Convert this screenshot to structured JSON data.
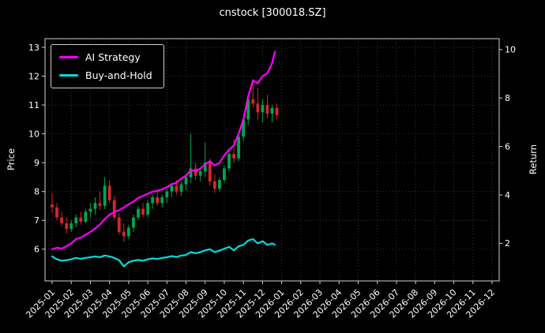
{
  "title": "cnstock [300018.SZ]",
  "chart_data": {
    "type": "candlestick",
    "title": "cnstock [300018.SZ]",
    "ylabel_left": "Price",
    "ylabel_right": "Return",
    "legend_position": "upper left",
    "grid": true,
    "background": "#000000",
    "x_tick_labels": [
      "2025-01",
      "2025-02",
      "2025-03",
      "2025-04",
      "2025-05",
      "2025-06",
      "2025-07",
      "2025-08",
      "2025-09",
      "2025-10",
      "2025-11",
      "2025-12",
      "2026-01",
      "2026-02",
      "2026-03",
      "2026-04",
      "2026-05",
      "2026-06",
      "2026-07",
      "2026-08",
      "2026-09",
      "2026-10",
      "2026-11",
      "2026-12"
    ],
    "price_axis": {
      "min": 4.9,
      "max": 13.3,
      "ticks": [
        6,
        7,
        8,
        9,
        10,
        11,
        12,
        13
      ]
    },
    "return_axis": {
      "min": 0.45,
      "max": 10.45,
      "ticks": [
        2,
        4,
        6,
        8,
        10
      ]
    },
    "colors": {
      "up": "#00a650",
      "down": "#d62728",
      "grid": "#3a3a3a",
      "spine": "#cfcfcf",
      "axis_text": "#ffffff"
    },
    "candles_format": "[month_offset_from_2025-01, open, high, low, close]",
    "candles": [
      [
        0,
        7.55,
        7.95,
        7.25,
        7.45
      ],
      [
        0.25,
        7.45,
        7.6,
        7.0,
        7.1
      ],
      [
        0.5,
        7.1,
        7.3,
        6.8,
        6.9
      ],
      [
        0.75,
        6.9,
        7.1,
        6.55,
        6.7
      ],
      [
        1,
        6.7,
        7.0,
        6.6,
        6.9
      ],
      [
        1.25,
        6.9,
        7.2,
        6.75,
        7.1
      ],
      [
        1.5,
        7.1,
        7.3,
        6.85,
        6.95
      ],
      [
        1.75,
        6.95,
        7.4,
        6.9,
        7.3
      ],
      [
        2,
        7.3,
        7.6,
        7.1,
        7.4
      ],
      [
        2.25,
        7.4,
        7.8,
        7.2,
        7.6
      ],
      [
        2.5,
        7.6,
        8.0,
        7.35,
        7.5
      ],
      [
        2.75,
        7.5,
        8.5,
        7.4,
        8.2
      ],
      [
        3,
        8.2,
        8.4,
        7.6,
        7.7
      ],
      [
        3.25,
        7.7,
        7.85,
        7.0,
        7.1
      ],
      [
        3.5,
        7.1,
        7.25,
        6.5,
        6.6
      ],
      [
        3.75,
        6.6,
        6.9,
        6.25,
        6.45
      ],
      [
        4,
        6.45,
        6.85,
        6.35,
        6.75
      ],
      [
        4.25,
        6.75,
        7.2,
        6.6,
        7.1
      ],
      [
        4.5,
        7.1,
        7.5,
        7.0,
        7.4
      ],
      [
        4.75,
        7.4,
        7.6,
        7.1,
        7.2
      ],
      [
        5,
        7.2,
        7.7,
        7.1,
        7.6
      ],
      [
        5.25,
        7.6,
        7.9,
        7.4,
        7.8
      ],
      [
        5.5,
        7.8,
        8.0,
        7.5,
        7.6
      ],
      [
        5.75,
        7.6,
        7.9,
        7.45,
        7.8
      ],
      [
        6,
        7.8,
        8.1,
        7.6,
        8.0
      ],
      [
        6.25,
        8.0,
        8.3,
        7.8,
        8.2
      ],
      [
        6.5,
        8.2,
        8.4,
        7.9,
        8.0
      ],
      [
        6.75,
        8.0,
        8.35,
        7.85,
        8.25
      ],
      [
        7,
        8.25,
        8.6,
        8.05,
        8.5
      ],
      [
        7.25,
        8.5,
        10.0,
        8.3,
        8.8
      ],
      [
        7.5,
        8.8,
        9.0,
        8.4,
        8.55
      ],
      [
        7.75,
        8.55,
        8.85,
        8.35,
        8.7
      ],
      [
        8,
        8.7,
        9.7,
        8.5,
        9.0
      ],
      [
        8.25,
        9.0,
        9.15,
        8.2,
        8.35
      ],
      [
        8.5,
        8.35,
        8.6,
        7.95,
        8.1
      ],
      [
        8.75,
        8.1,
        8.5,
        8.0,
        8.4
      ],
      [
        9,
        8.4,
        8.9,
        8.3,
        8.8
      ],
      [
        9.25,
        8.8,
        9.4,
        8.7,
        9.3
      ],
      [
        9.5,
        9.3,
        9.8,
        9.0,
        9.15
      ],
      [
        9.75,
        9.15,
        10.0,
        9.05,
        9.9
      ],
      [
        10,
        9.9,
        10.6,
        9.75,
        10.5
      ],
      [
        10.25,
        10.5,
        11.3,
        10.3,
        11.2
      ],
      [
        10.5,
        11.2,
        11.9,
        10.9,
        11.05
      ],
      [
        10.75,
        11.05,
        11.6,
        10.5,
        10.75
      ],
      [
        11,
        10.75,
        11.2,
        10.4,
        11.0
      ],
      [
        11.25,
        11.0,
        11.35,
        10.55,
        10.7
      ],
      [
        11.5,
        10.7,
        11.0,
        10.4,
        10.9
      ],
      [
        11.75,
        10.9,
        11.05,
        10.5,
        10.65
      ]
    ],
    "series": [
      {
        "name": "AI Strategy",
        "color": "#ff00ff",
        "points": [
          [
            0,
            6.0
          ],
          [
            0.25,
            6.05
          ],
          [
            0.5,
            6.02
          ],
          [
            0.75,
            6.1
          ],
          [
            1,
            6.2
          ],
          [
            1.25,
            6.35
          ],
          [
            1.5,
            6.4
          ],
          [
            1.75,
            6.5
          ],
          [
            2,
            6.6
          ],
          [
            2.25,
            6.72
          ],
          [
            2.5,
            6.85
          ],
          [
            2.75,
            7.05
          ],
          [
            3,
            7.2
          ],
          [
            3.25,
            7.28
          ],
          [
            3.5,
            7.35
          ],
          [
            3.75,
            7.45
          ],
          [
            4,
            7.55
          ],
          [
            4.25,
            7.65
          ],
          [
            4.5,
            7.78
          ],
          [
            4.75,
            7.85
          ],
          [
            5,
            7.92
          ],
          [
            5.25,
            8.0
          ],
          [
            5.5,
            8.02
          ],
          [
            5.75,
            8.08
          ],
          [
            6,
            8.15
          ],
          [
            6.25,
            8.25
          ],
          [
            6.5,
            8.3
          ],
          [
            6.75,
            8.45
          ],
          [
            7,
            8.55
          ],
          [
            7.25,
            8.75
          ],
          [
            7.5,
            8.7
          ],
          [
            7.75,
            8.8
          ],
          [
            8,
            8.95
          ],
          [
            8.25,
            9.05
          ],
          [
            8.5,
            8.9
          ],
          [
            8.75,
            9.0
          ],
          [
            9,
            9.25
          ],
          [
            9.25,
            9.45
          ],
          [
            9.5,
            9.6
          ],
          [
            9.75,
            10.0
          ],
          [
            10,
            10.5
          ],
          [
            10.25,
            11.3
          ],
          [
            10.5,
            11.85
          ],
          [
            10.75,
            11.75
          ],
          [
            11,
            12.0
          ],
          [
            11.25,
            12.1
          ],
          [
            11.5,
            12.45
          ],
          [
            11.65,
            12.85
          ]
        ]
      },
      {
        "name": "Buy-and-Hold",
        "color": "#00dcdc",
        "points": [
          [
            0,
            5.75
          ],
          [
            0.25,
            5.65
          ],
          [
            0.5,
            5.6
          ],
          [
            0.75,
            5.62
          ],
          [
            1,
            5.65
          ],
          [
            1.25,
            5.7
          ],
          [
            1.5,
            5.67
          ],
          [
            1.75,
            5.7
          ],
          [
            2,
            5.72
          ],
          [
            2.25,
            5.75
          ],
          [
            2.5,
            5.72
          ],
          [
            2.75,
            5.78
          ],
          [
            3,
            5.75
          ],
          [
            3.25,
            5.7
          ],
          [
            3.5,
            5.62
          ],
          [
            3.75,
            5.4
          ],
          [
            4,
            5.55
          ],
          [
            4.25,
            5.6
          ],
          [
            4.5,
            5.63
          ],
          [
            4.75,
            5.6
          ],
          [
            5,
            5.65
          ],
          [
            5.25,
            5.68
          ],
          [
            5.5,
            5.66
          ],
          [
            5.75,
            5.7
          ],
          [
            6,
            5.72
          ],
          [
            6.25,
            5.76
          ],
          [
            6.5,
            5.73
          ],
          [
            6.75,
            5.78
          ],
          [
            7,
            5.8
          ],
          [
            7.25,
            5.9
          ],
          [
            7.5,
            5.86
          ],
          [
            7.75,
            5.9
          ],
          [
            8,
            5.96
          ],
          [
            8.25,
            6.0
          ],
          [
            8.5,
            5.9
          ],
          [
            8.75,
            5.95
          ],
          [
            9,
            6.02
          ],
          [
            9.25,
            6.08
          ],
          [
            9.5,
            5.96
          ],
          [
            9.75,
            6.1
          ],
          [
            10,
            6.15
          ],
          [
            10.25,
            6.3
          ],
          [
            10.5,
            6.35
          ],
          [
            10.75,
            6.2
          ],
          [
            11,
            6.28
          ],
          [
            11.25,
            6.15
          ],
          [
            11.5,
            6.2
          ],
          [
            11.65,
            6.15
          ]
        ]
      }
    ]
  }
}
